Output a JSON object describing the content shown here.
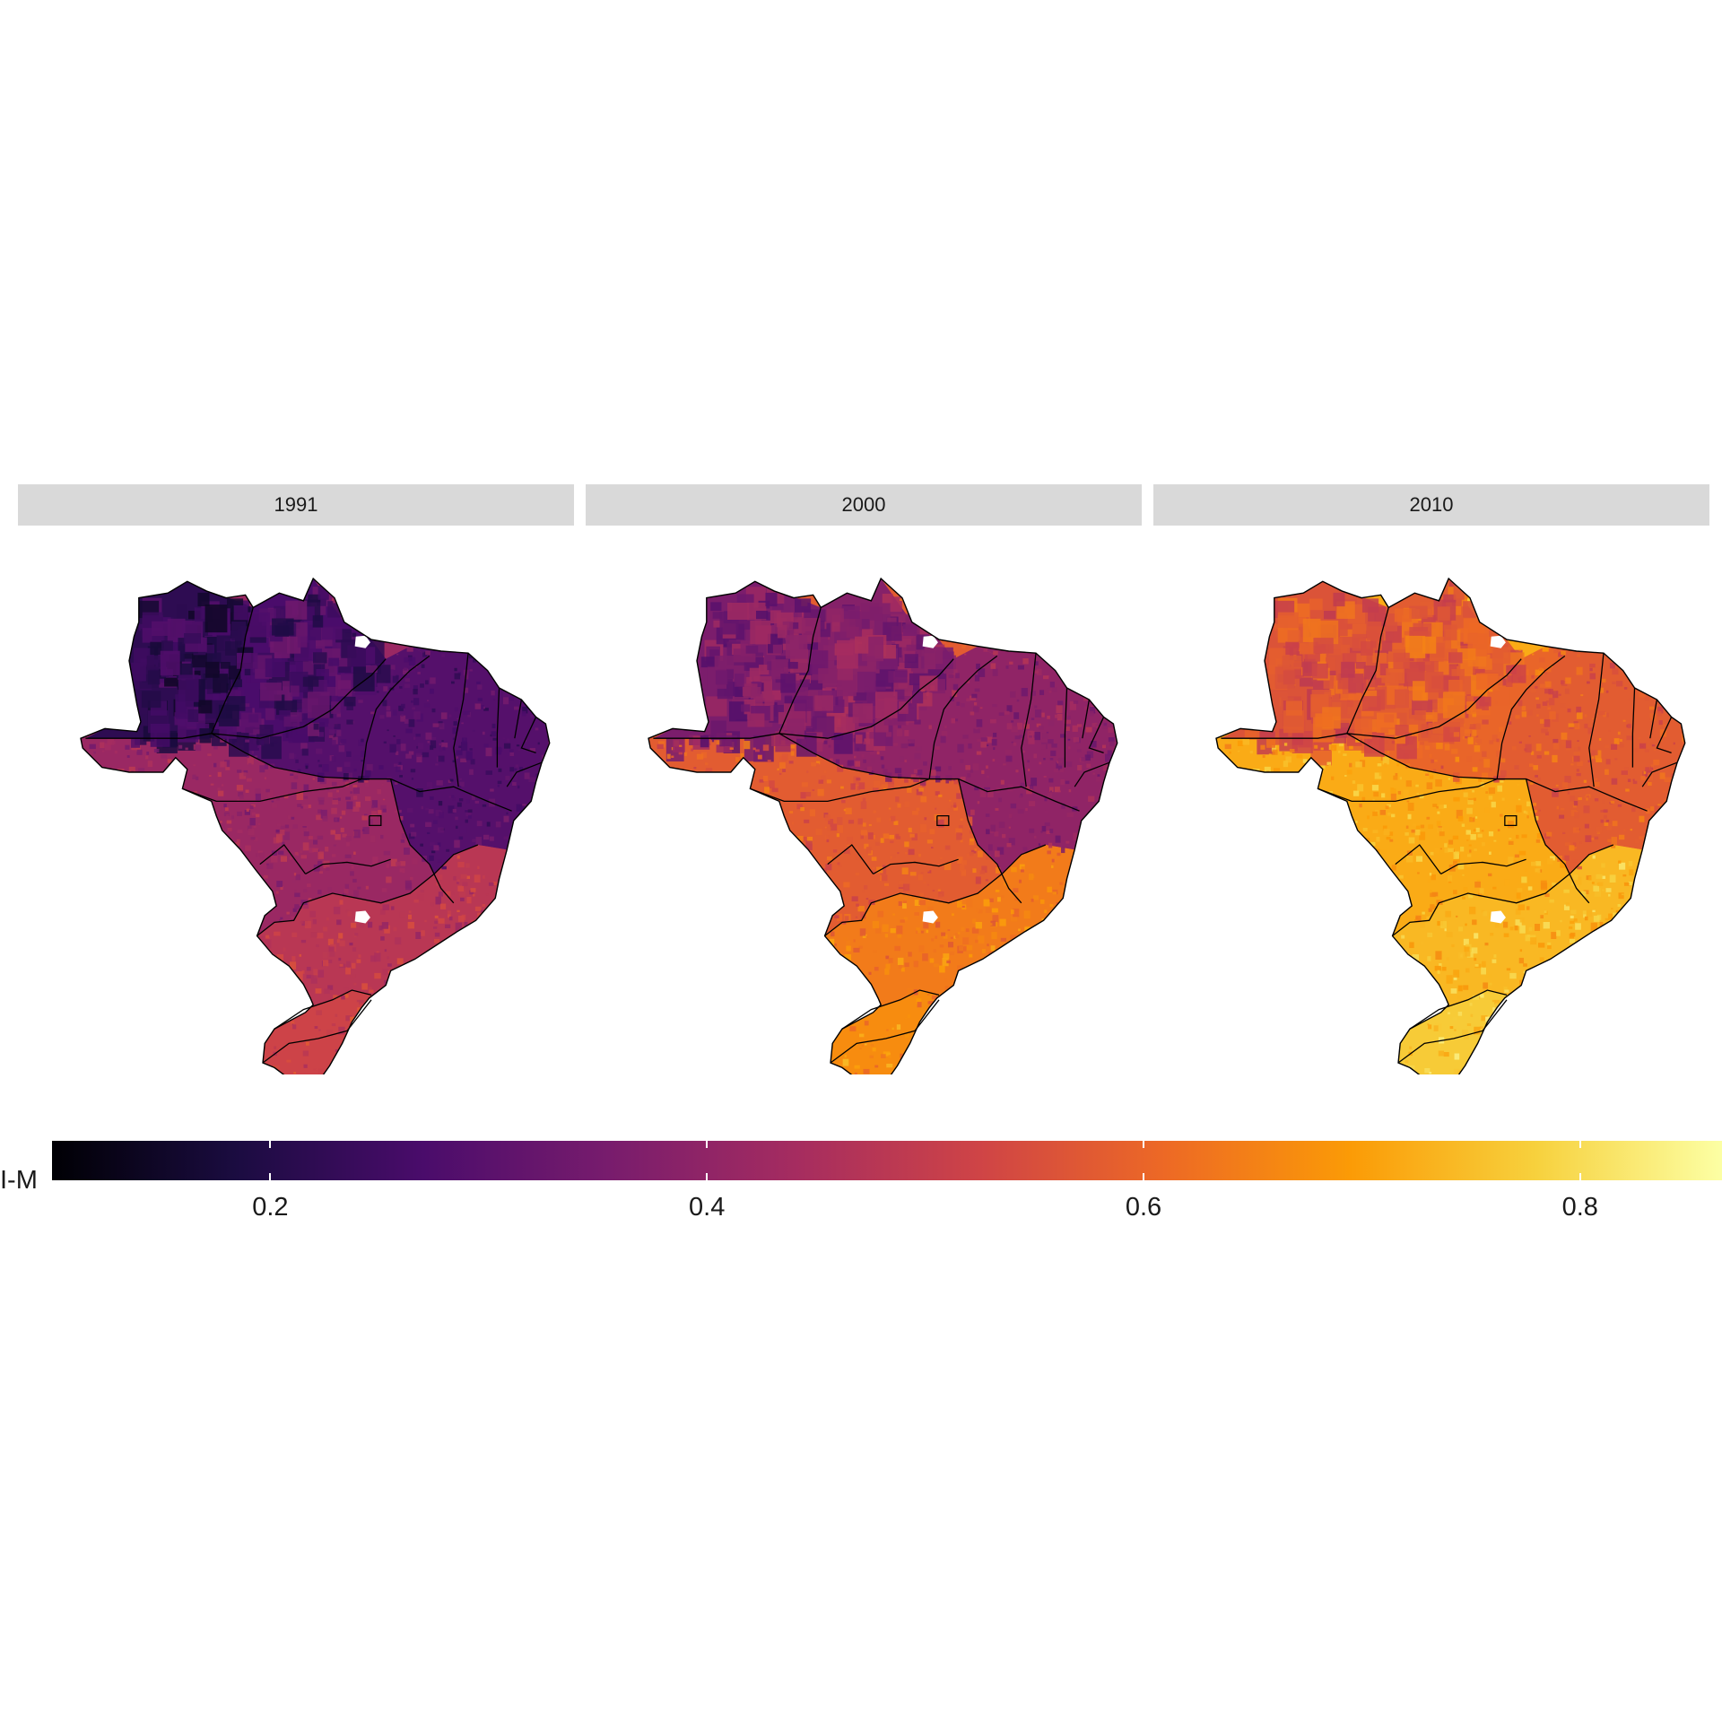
{
  "legend": {
    "title": "I-M",
    "min": 0.1,
    "max": 0.865,
    "ticks": [
      {
        "value": 0.2,
        "label": "0.2"
      },
      {
        "value": 0.4,
        "label": "0.4"
      },
      {
        "value": 0.6,
        "label": "0.6"
      },
      {
        "value": 0.8,
        "label": "0.8"
      }
    ],
    "palette": [
      "#000004",
      "#1b0c41",
      "#4a0c6b",
      "#781c6d",
      "#a52c60",
      "#cf4446",
      "#ed6925",
      "#fb9b06",
      "#f7d13d",
      "#fcffa4"
    ]
  },
  "panels": [
    {
      "title": "1991",
      "year": 1991,
      "region_values": {
        "north_west": 0.22,
        "north_central": 0.27,
        "north_east": 0.29,
        "northeast": 0.29,
        "center_west": 0.42,
        "southeast": 0.48,
        "south": 0.52
      }
    },
    {
      "title": "2000",
      "year": 2000,
      "region_values": {
        "north_west": 0.36,
        "north_central": 0.38,
        "north_east": 0.4,
        "northeast": 0.4,
        "center_west": 0.58,
        "southeast": 0.64,
        "south": 0.67
      }
    },
    {
      "title": "2010",
      "year": 2010,
      "region_values": {
        "north_west": 0.56,
        "north_central": 0.58,
        "north_east": 0.6,
        "northeast": 0.58,
        "center_west": 0.72,
        "southeast": 0.74,
        "south": 0.77
      }
    }
  ]
}
